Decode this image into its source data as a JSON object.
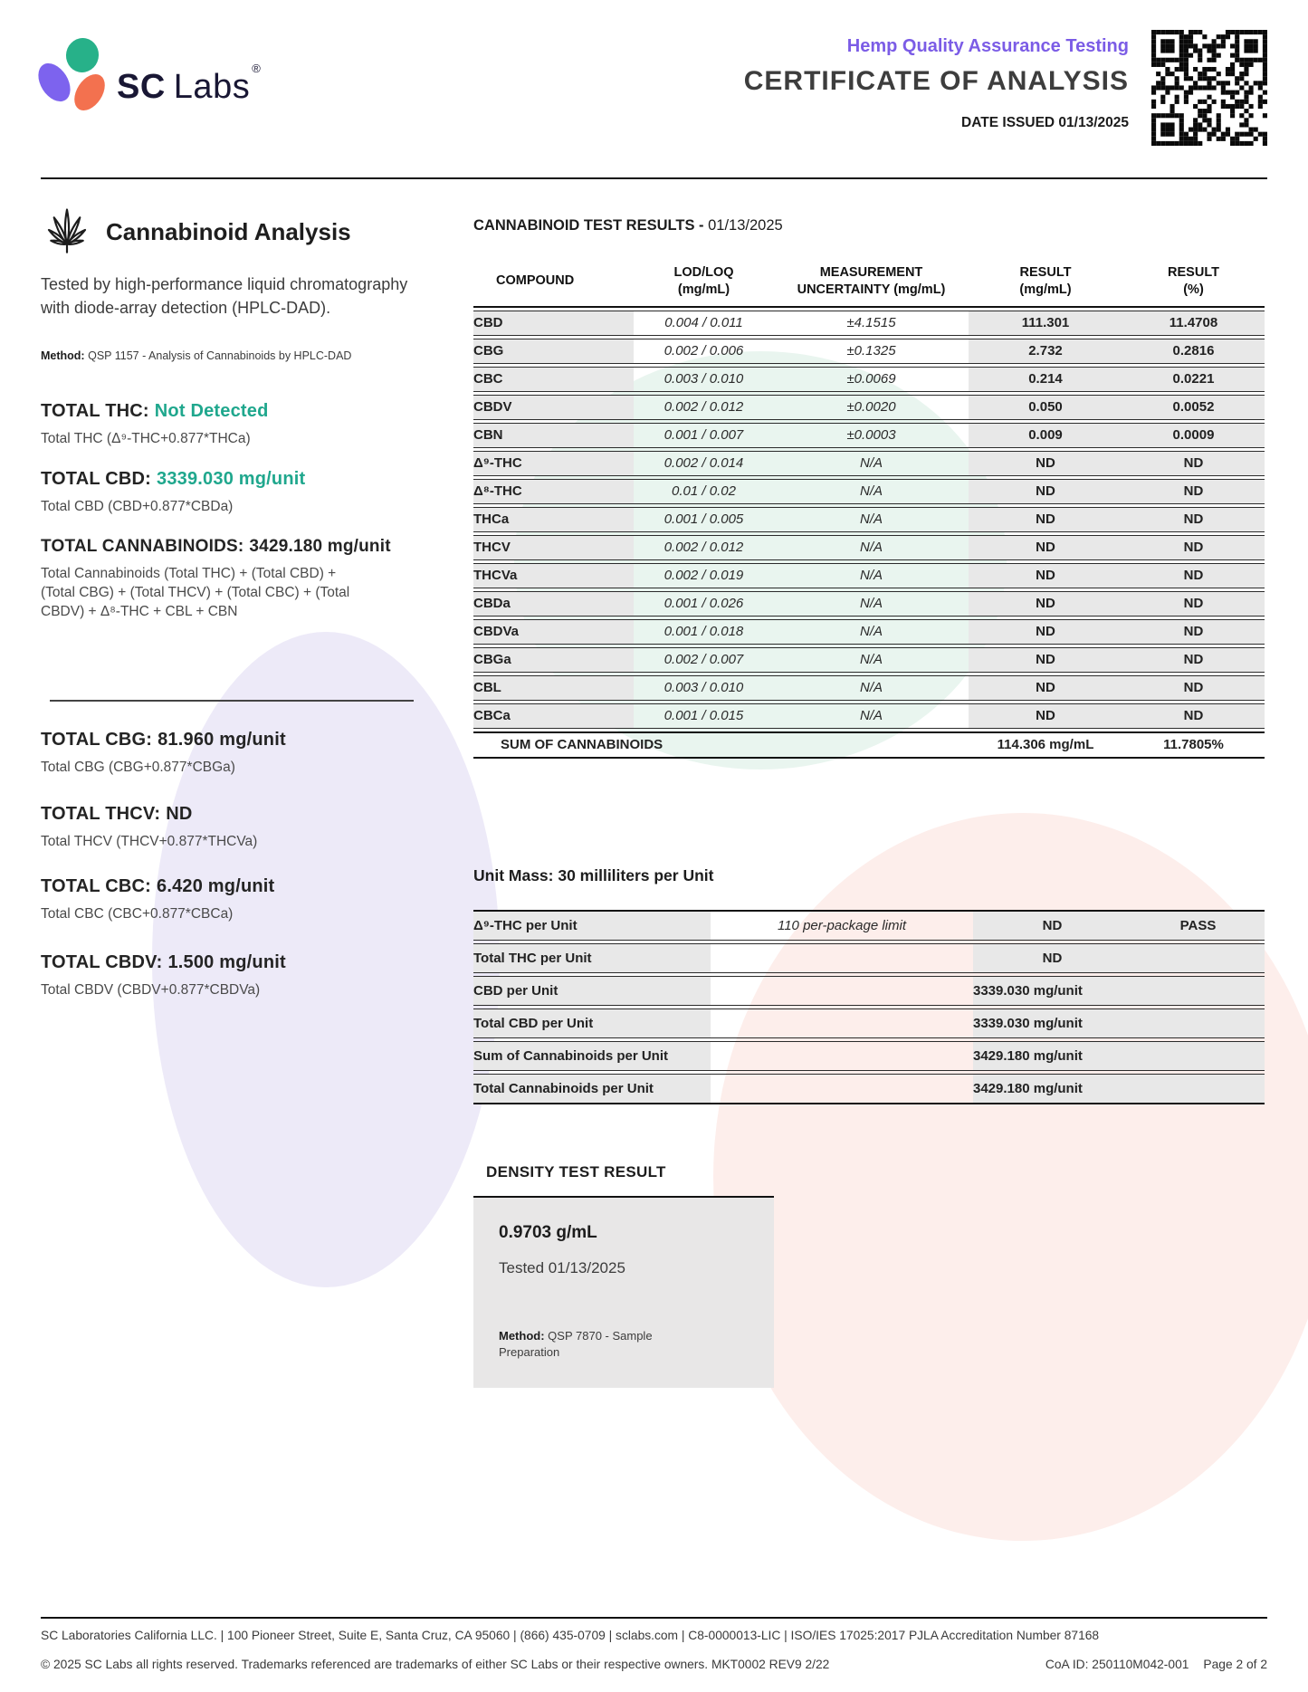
{
  "colors": {
    "accent_purple": "#7b5ce6",
    "teal_green": "#1fa78d",
    "logo_navy": "#191734",
    "logo_purple": "#7d63ee",
    "logo_green": "#27b189",
    "logo_coral": "#f3714f",
    "cell_gray": "#e8e8e8",
    "blob_lavender": "#edeaf8",
    "blob_mint": "#e9f5ef",
    "blob_pink": "#fdeeeb"
  },
  "header": {
    "logo_sc": "SC",
    "logo_labs": "Labs",
    "logo_reg": "®",
    "program": "Hemp Quality Assurance Testing",
    "title": "CERTIFICATE OF ANALYSIS",
    "date_issued": "DATE ISSUED 01/13/2025"
  },
  "analysis": {
    "section_title": "Cannabinoid Analysis",
    "description": "Tested by high-performance liquid chromatography with diode-array detection (HPLC-DAD).",
    "method_label": "Method:",
    "method": "QSP 1157 - Analysis of Cannabinoids by HPLC-DAD",
    "totals": [
      {
        "label": "TOTAL THC:",
        "value": "Not Detected",
        "formula": "Total THC (Δ⁹-THC+0.877*THCa)"
      },
      {
        "label": "TOTAL CBD:",
        "value": "3339.030 mg/unit",
        "formula": "Total CBD (CBD+0.877*CBDa)"
      },
      {
        "label": "TOTAL CANNABINOIDS:",
        "value": "3429.180 mg/unit",
        "formula": "Total Cannabinoids (Total THC) + (Total CBD) + (Total CBG) + (Total THCV) + (Total CBC) + (Total CBDV) + Δ⁸-THC + CBL + CBN"
      },
      {
        "label": "TOTAL CBG:",
        "value": "81.960 mg/unit",
        "formula": "Total CBG (CBG+0.877*CBGa)"
      },
      {
        "label": "TOTAL THCV:",
        "value": "ND",
        "formula": "Total THCV (THCV+0.877*THCVa)"
      },
      {
        "label": "TOTAL CBC:",
        "value": "6.420 mg/unit",
        "formula": "Total CBC (CBC+0.877*CBCa)"
      },
      {
        "label": "TOTAL CBDV:",
        "value": "1.500 mg/unit",
        "formula": "Total CBDV (CBDV+0.877*CBDVa)"
      }
    ]
  },
  "results": {
    "title_bold": "CANNABINOID TEST RESULTS -",
    "title_date": " 01/13/2025",
    "columns": [
      {
        "l1": "COMPOUND",
        "l2": ""
      },
      {
        "l1": "LOD/LOQ",
        "l2": "(mg/mL)"
      },
      {
        "l1": "MEASUREMENT",
        "l2": "UNCERTAINTY (mg/mL)"
      },
      {
        "l1": "RESULT",
        "l2": "(mg/mL)"
      },
      {
        "l1": "RESULT",
        "l2": "(%)"
      }
    ],
    "rows": [
      {
        "compound": "CBD",
        "lod_loq": "0.004 / 0.011",
        "uncertainty": "±4.1515",
        "result_mg": "111.301",
        "result_pct": "11.4708"
      },
      {
        "compound": "CBG",
        "lod_loq": "0.002 / 0.006",
        "uncertainty": "±0.1325",
        "result_mg": "2.732",
        "result_pct": "0.2816"
      },
      {
        "compound": "CBC",
        "lod_loq": "0.003 / 0.010",
        "uncertainty": "±0.0069",
        "result_mg": "0.214",
        "result_pct": "0.0221"
      },
      {
        "compound": "CBDV",
        "lod_loq": "0.002 / 0.012",
        "uncertainty": "±0.0020",
        "result_mg": "0.050",
        "result_pct": "0.0052"
      },
      {
        "compound": "CBN",
        "lod_loq": "0.001 / 0.007",
        "uncertainty": "±0.0003",
        "result_mg": "0.009",
        "result_pct": "0.0009"
      },
      {
        "compound": "Δ⁹-THC",
        "lod_loq": "0.002 / 0.014",
        "uncertainty": "N/A",
        "result_mg": "ND",
        "result_pct": "ND"
      },
      {
        "compound": "Δ⁸-THC",
        "lod_loq": "0.01 / 0.02",
        "uncertainty": "N/A",
        "result_mg": "ND",
        "result_pct": "ND"
      },
      {
        "compound": "THCa",
        "lod_loq": "0.001 / 0.005",
        "uncertainty": "N/A",
        "result_mg": "ND",
        "result_pct": "ND"
      },
      {
        "compound": "THCV",
        "lod_loq": "0.002 / 0.012",
        "uncertainty": "N/A",
        "result_mg": "ND",
        "result_pct": "ND"
      },
      {
        "compound": "THCVa",
        "lod_loq": "0.002 / 0.019",
        "uncertainty": "N/A",
        "result_mg": "ND",
        "result_pct": "ND"
      },
      {
        "compound": "CBDa",
        "lod_loq": "0.001 / 0.026",
        "uncertainty": "N/A",
        "result_mg": "ND",
        "result_pct": "ND"
      },
      {
        "compound": "CBDVa",
        "lod_loq": "0.001 / 0.018",
        "uncertainty": "N/A",
        "result_mg": "ND",
        "result_pct": "ND"
      },
      {
        "compound": "CBGa",
        "lod_loq": "0.002 / 0.007",
        "uncertainty": "N/A",
        "result_mg": "ND",
        "result_pct": "ND"
      },
      {
        "compound": "CBL",
        "lod_loq": "0.003 / 0.010",
        "uncertainty": "N/A",
        "result_mg": "ND",
        "result_pct": "ND"
      },
      {
        "compound": "CBCa",
        "lod_loq": "0.001 / 0.015",
        "uncertainty": "N/A",
        "result_mg": "ND",
        "result_pct": "ND"
      }
    ],
    "sum_row": {
      "label": "SUM OF CANNABINOIDS",
      "result_mg": "114.306 mg/mL",
      "result_pct": "11.7805%"
    }
  },
  "unit_mass": {
    "title": "Unit Mass: 30 milliliters per Unit",
    "rows": [
      {
        "label": "Δ⁹-THC per Unit",
        "note": "110 per-package limit",
        "result": "ND",
        "status": "PASS"
      },
      {
        "label": "Total THC per Unit",
        "note": "",
        "result": "ND",
        "status": ""
      },
      {
        "label": "CBD per Unit",
        "note": "",
        "value": "3339.030 mg/unit"
      },
      {
        "label": "Total CBD per Unit",
        "note": "",
        "value": "3339.030 mg/unit"
      },
      {
        "label": "Sum of Cannabinoids per Unit",
        "note": "",
        "value": "3429.180 mg/unit"
      },
      {
        "label": "Total Cannabinoids per Unit",
        "note": "",
        "value": "3429.180 mg/unit"
      }
    ]
  },
  "density": {
    "title": "DENSITY TEST RESULT",
    "value": "0.9703 g/mL",
    "tested": "Tested 01/13/2025",
    "method_label": "Method:",
    "method": "QSP 7870 - Sample Preparation"
  },
  "footer": {
    "line1": "SC Laboratories California LLC. | 100 Pioneer Street, Suite E, Santa Cruz, CA 95060 | (866) 435-0709 | sclabs.com | C8-0000013-LIC | ISO/IES 17025:2017 PJLA Accreditation Number 87168",
    "line2": "© 2025 SC Labs all rights reserved. Trademarks referenced are trademarks of either SC Labs or their respective owners. MKT0002 REV9 2/22",
    "coa_id": "CoA ID: 250110M042-001",
    "page": "Page 2 of 2"
  }
}
